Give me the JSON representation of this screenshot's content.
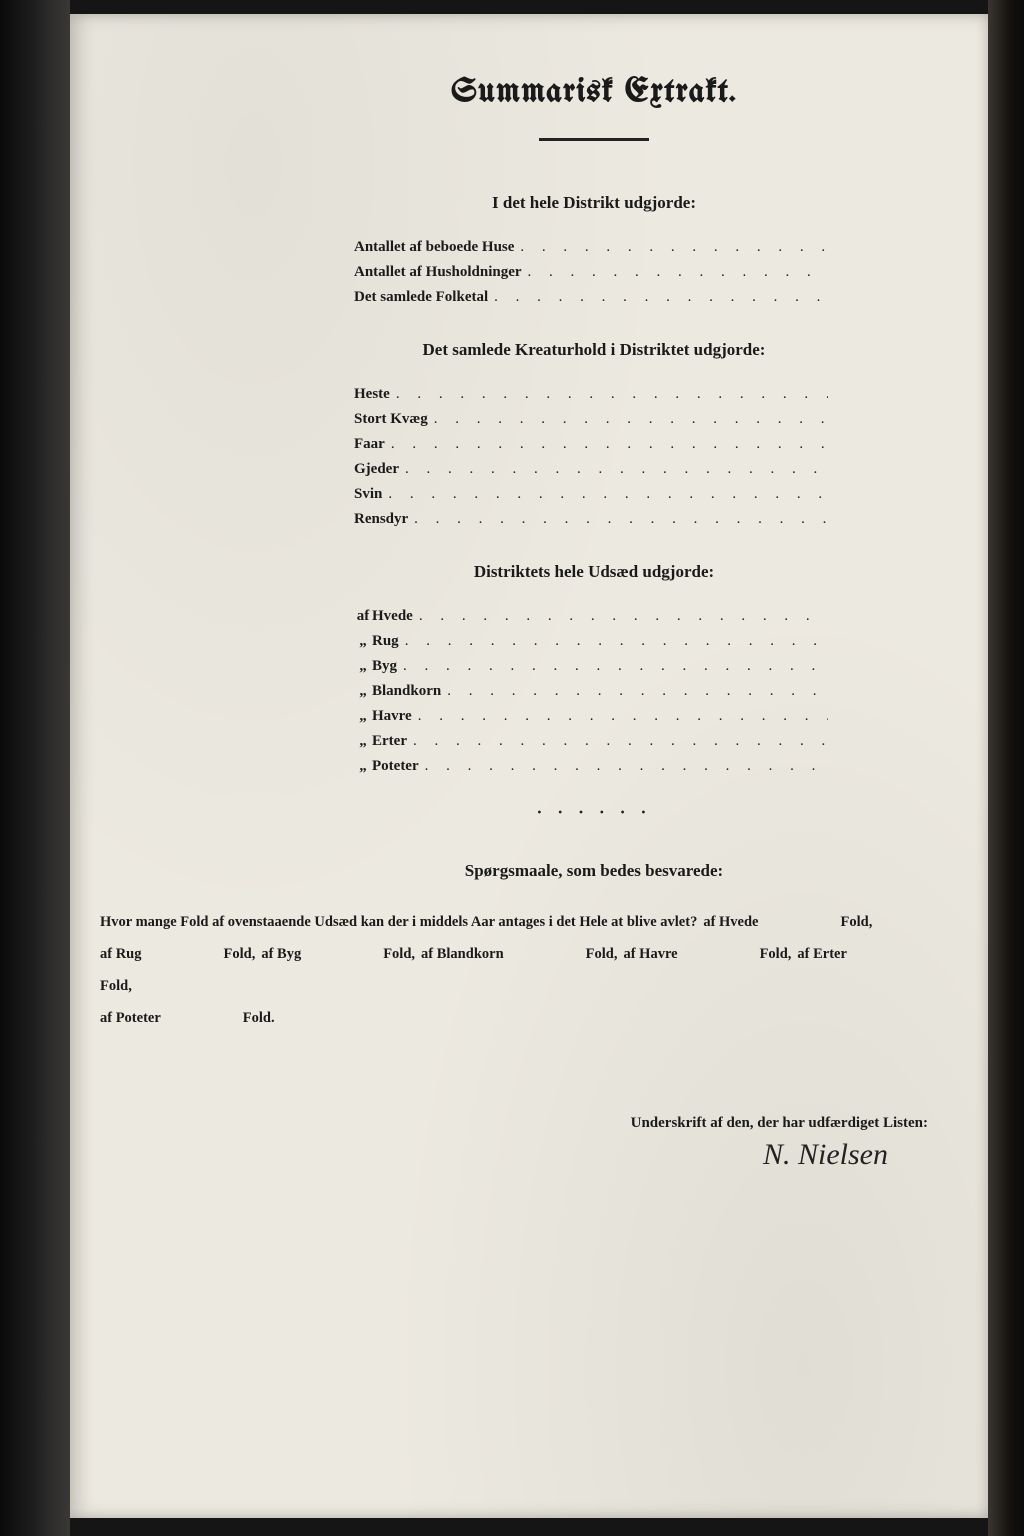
{
  "colors": {
    "paper": "#ece9e0",
    "ink": "#1a1a1a",
    "frame": "#0a0a0a"
  },
  "typography": {
    "title_fontsize": 34,
    "section_fontsize": 17,
    "body_fontsize": 15,
    "question_fontsize": 14.5,
    "signature_fontsize": 30
  },
  "title": "Summarisk Extrakt.",
  "section1": {
    "heading": "I det hele Distrikt udgjorde:",
    "rows": [
      {
        "label": "Antallet af beboede Huse"
      },
      {
        "label": "Antallet af Husholdninger"
      },
      {
        "label": "Det samlede Folketal"
      }
    ]
  },
  "section2": {
    "heading": "Det samlede Kreaturhold i Distriktet udgjorde:",
    "rows": [
      {
        "label": "Heste"
      },
      {
        "label": "Stort Kvæg"
      },
      {
        "label": "Faar"
      },
      {
        "label": "Gjeder"
      },
      {
        "label": "Svin"
      },
      {
        "label": "Rensdyr"
      }
    ]
  },
  "section3": {
    "heading": "Distriktets hele Udsæd udgjorde:",
    "rows": [
      {
        "prefix": "af",
        "label": "Hvede"
      },
      {
        "prefix": "„",
        "label": "Rug"
      },
      {
        "prefix": "„",
        "label": "Byg"
      },
      {
        "prefix": "„",
        "label": "Blandkorn"
      },
      {
        "prefix": "„",
        "label": "Havre"
      },
      {
        "prefix": "„",
        "label": "Erter"
      },
      {
        "prefix": "„",
        "label": "Poteter"
      }
    ]
  },
  "questions": {
    "heading": "Spørgsmaale, som bedes besvarede:",
    "lead": "Hvor mange Fold af ovenstaaende Udsæd kan der i middels Aar antages i det Hele at blive avlet?",
    "items": [
      {
        "label": "af Hvede",
        "unit": "Fold,"
      },
      {
        "label": "af Rug",
        "unit": "Fold,"
      },
      {
        "label": "af Byg",
        "unit": "Fold,"
      },
      {
        "label": "af Blandkorn",
        "unit": "Fold,"
      },
      {
        "label": "af Havre",
        "unit": "Fold,"
      },
      {
        "label": "af Erter",
        "unit": "Fold,"
      },
      {
        "label": "af Poteter",
        "unit": "Fold."
      }
    ]
  },
  "signature": {
    "label": "Underskrift af den, der har udfærdiget Listen:",
    "name": "N. Nielsen"
  },
  "leader_dots": ". . . . . . . . . . . . . . . . . . . . . . . . ."
}
